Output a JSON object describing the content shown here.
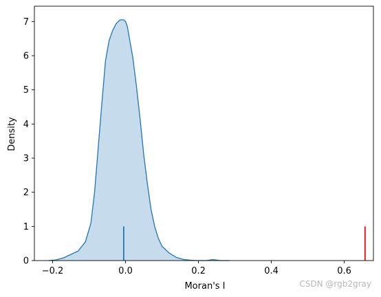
{
  "chart_data": {
    "type": "area",
    "title": "",
    "xlabel": "Moran's I",
    "ylabel": "Density",
    "xlim": [
      -0.25,
      0.68
    ],
    "ylim": [
      0,
      7.45
    ],
    "x_ticks": [
      -0.2,
      0.0,
      0.2,
      0.4,
      0.6
    ],
    "x_tick_labels": [
      "−0.2",
      "0.0",
      "0.2",
      "0.4",
      "0.6"
    ],
    "y_ticks": [
      0,
      1,
      2,
      3,
      4,
      5,
      6,
      7
    ],
    "y_tick_labels": [
      "0",
      "1",
      "2",
      "3",
      "4",
      "5",
      "6",
      "7"
    ],
    "grid": false,
    "legend": "none",
    "series": [
      {
        "type": "kde",
        "color": "#1f77b4",
        "fill": "#c6dbec",
        "x": [
          -0.21,
          -0.19,
          -0.17,
          -0.15,
          -0.13,
          -0.11,
          -0.095,
          -0.085,
          -0.075,
          -0.065,
          -0.055,
          -0.045,
          -0.035,
          -0.025,
          -0.015,
          -0.005,
          0.0,
          0.005,
          0.01,
          0.02,
          0.03,
          0.04,
          0.05,
          0.06,
          0.07,
          0.08,
          0.09,
          0.1,
          0.12,
          0.14,
          0.16,
          0.18,
          0.2,
          0.22,
          0.24,
          0.26,
          0.285
        ],
        "y": [
          0.0,
          0.02,
          0.08,
          0.18,
          0.28,
          0.55,
          1.1,
          2.0,
          3.3,
          4.6,
          5.85,
          6.45,
          6.75,
          6.95,
          7.05,
          7.05,
          7.0,
          6.85,
          6.55,
          5.95,
          5.1,
          4.15,
          3.1,
          2.25,
          1.5,
          1.0,
          0.65,
          0.42,
          0.22,
          0.09,
          0.03,
          0.01,
          0.0,
          0.0,
          0.03,
          0.0,
          0.0
        ]
      }
    ],
    "markers": [
      {
        "x": -0.005,
        "height": 1.0,
        "color": "#1f77b4"
      },
      {
        "x": 0.657,
        "height": 1.0,
        "color": "#ff0000"
      }
    ]
  },
  "watermark": "CSDN @rgb2gray"
}
